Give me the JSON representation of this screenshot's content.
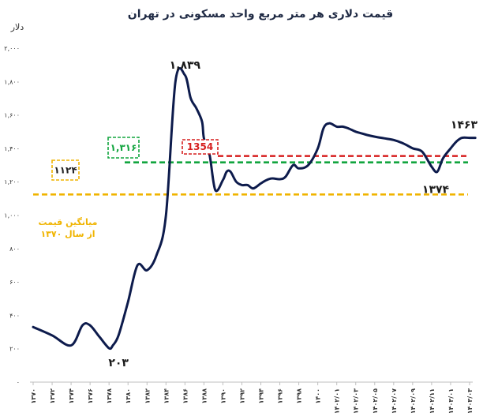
{
  "chart_data": {
    "type": "line",
    "title": "قیمت دلاری هر متر مربع واحد مسکونی در تهران",
    "ylabel": "دلار",
    "ylim": [
      0,
      2000
    ],
    "yticks": [
      0,
      200,
      400,
      600,
      800,
      1000,
      1200,
      1400,
      1600,
      1800,
      2000
    ],
    "ytick_labels": [
      "۰",
      "۲۰۰",
      "۴۰۰",
      "۶۰۰",
      "۸۰۰",
      "۱,۰۰۰",
      "۱,۲۰۰",
      "۱,۴۰۰",
      "۱,۶۰۰",
      "۱,۸۰۰",
      "۲,۰۰۰"
    ],
    "x_categories": [
      "۱۳۷۰",
      "۱۳۷۲",
      "۱۳۷۴",
      "۱۳۷۶",
      "۱۳۷۸",
      "۱۳۸۰",
      "۱۳۸۲",
      "۱۳۸۴",
      "۱۳۸۶",
      "۱۳۸۸",
      "۱۳۹۰",
      "۱۳۹۲",
      "۱۳۹۴",
      "۱۳۹۶",
      "۱۳۹۸",
      "۱۴۰۰",
      "۱۴۰۲/۰۱",
      "۱۴۰۲/۰۳",
      "۱۴۰۲/۰۵",
      "۱۴۰۲/۰۷",
      "۱۴۰۲/۰۹",
      "۱۴۰۲/۱۱",
      "۱۴۰۳/۰۱",
      "۱۴۰۳/۰۳"
    ],
    "series": [
      {
        "color": "#0d1b4c",
        "x": [
          0,
          1,
          2,
          2.6,
          3,
          3.5,
          4,
          4.2,
          4.5,
          5,
          5.5,
          6,
          6.5,
          7,
          7.5,
          8,
          8.3,
          8.6,
          8.9,
          9,
          9.3,
          9.6,
          10,
          10.2,
          10.4,
          10.7,
          11,
          11.3,
          11.6,
          12,
          12.3,
          12.6,
          13,
          13.3,
          13.7,
          14,
          14.5,
          15,
          15.3,
          15.6,
          16,
          16.3,
          16.6,
          17,
          17.3,
          17.6,
          18,
          18.5,
          19,
          19.5,
          20,
          20.5,
          21,
          21.3,
          21.6,
          22,
          22.3,
          22.6,
          23,
          23.3
        ],
        "y": [
          330,
          280,
          220,
          340,
          340,
          270,
          203,
          220,
          280,
          480,
          700,
          670,
          760,
          1000,
          1800,
          1839,
          1700,
          1640,
          1560,
          1460,
          1360,
          1150,
          1210,
          1260,
          1260,
          1200,
          1180,
          1180,
          1160,
          1190,
          1210,
          1220,
          1215,
          1230,
          1300,
          1280,
          1300,
          1400,
          1520,
          1550,
          1530,
          1530,
          1520,
          1500,
          1490,
          1480,
          1470,
          1460,
          1450,
          1430,
          1400,
          1380,
          1290,
          1260,
          1340,
          1400,
          1440,
          1463,
          1463,
          1463
        ]
      }
    ],
    "reference_lines": [
      {
        "name": "میانگین قیمت از سال ۱۳۷۰",
        "value": 1124,
        "color": "#f0b400",
        "label_box": "۱۱۲۴"
      },
      {
        "value": 1316,
        "color": "#12a53f",
        "label_box": "۱,۳۱۶"
      },
      {
        "value": 1354,
        "color": "#d61f1f",
        "label_box": "1354"
      }
    ],
    "annotations": {
      "peak": "۱,۸۳۹",
      "trough": "۲۰۳",
      "last": "۱۴۶۳",
      "year_label": "۱۳۷۴",
      "avg_note_line1": "میانگین قیمت",
      "avg_note_line2": "از سال ۱۳۷۰"
    }
  }
}
